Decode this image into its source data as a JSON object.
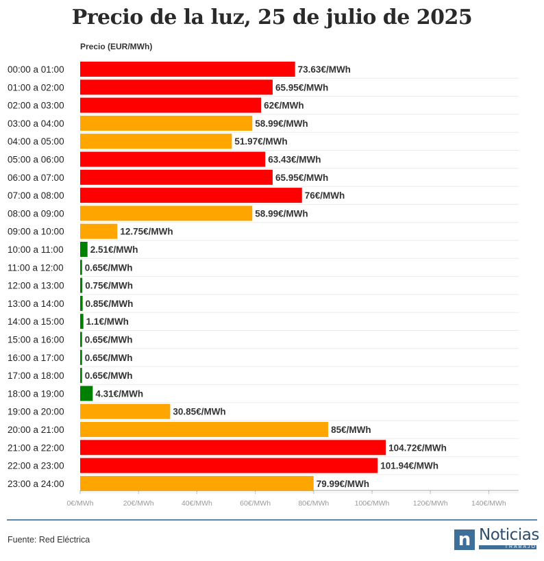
{
  "title": "Precio de la luz, 25 de julio de 2025",
  "source": "Fuente: Red Eléctrica",
  "logo": {
    "mark": "n",
    "name": "Noticias",
    "sub": "TRABAJO"
  },
  "colors": {
    "high": "#ff0000",
    "mid": "#ffa500",
    "low": "#008000",
    "axis": "#aaaaaa",
    "grid": "#ebebeb",
    "rule": "#5b87a8"
  },
  "chart_data": {
    "type": "bar",
    "orientation": "horizontal",
    "title": "Precio de la luz, 25 de julio de 2025",
    "ylabel": "Precio (EUR/MWh)",
    "xlabel": "",
    "xlim": [
      0,
      150
    ],
    "ticks": [
      0,
      20,
      40,
      60,
      80,
      100,
      120,
      140
    ],
    "tick_labels": [
      "0€/MWh",
      "20€/MWh",
      "40€/MWh",
      "60€/MWh",
      "80€/MWh",
      "100€/MWh",
      "120€/MWh",
      "140€/MWh"
    ],
    "categories": [
      "00:00 a 01:00",
      "01:00 a 02:00",
      "02:00 a 03:00",
      "03:00 a 04:00",
      "04:00 a 05:00",
      "05:00 a 06:00",
      "06:00 a 07:00",
      "07:00 a 08:00",
      "08:00 a 09:00",
      "09:00 a 10:00",
      "10:00 a 11:00",
      "11:00 a 12:00",
      "12:00 a 13:00",
      "13:00 a 14:00",
      "14:00 a 15:00",
      "15:00 a 16:00",
      "16:00 a 17:00",
      "17:00 a 18:00",
      "18:00 a 19:00",
      "19:00 a 20:00",
      "20:00 a 21:00",
      "21:00 a 22:00",
      "22:00 a 23:00",
      "23:00 a 24:00"
    ],
    "values": [
      73.63,
      65.95,
      62,
      58.99,
      51.97,
      63.43,
      65.95,
      76,
      58.99,
      12.75,
      2.51,
      0.65,
      0.75,
      0.85,
      1.1,
      0.65,
      0.65,
      0.65,
      4.31,
      30.85,
      85,
      104.72,
      101.94,
      79.99
    ],
    "labels": [
      "73.63€/MWh",
      "65.95€/MWh",
      "62€/MWh",
      "58.99€/MWh",
      "51.97€/MWh",
      "63.43€/MWh",
      "65.95€/MWh",
      "76€/MWh",
      "58.99€/MWh",
      "12.75€/MWh",
      "2.51€/MWh",
      "0.65€/MWh",
      "0.75€/MWh",
      "0.85€/MWh",
      "1.1€/MWh",
      "0.65€/MWh",
      "0.65€/MWh",
      "0.65€/MWh",
      "4.31€/MWh",
      "30.85€/MWh",
      "85€/MWh",
      "104.72€/MWh",
      "101.94€/MWh",
      "79.99€/MWh"
    ],
    "levels": [
      "high",
      "high",
      "high",
      "mid",
      "mid",
      "high",
      "high",
      "high",
      "mid",
      "mid",
      "low",
      "low",
      "low",
      "low",
      "low",
      "low",
      "low",
      "low",
      "low",
      "mid",
      "mid",
      "high",
      "high",
      "mid"
    ]
  }
}
